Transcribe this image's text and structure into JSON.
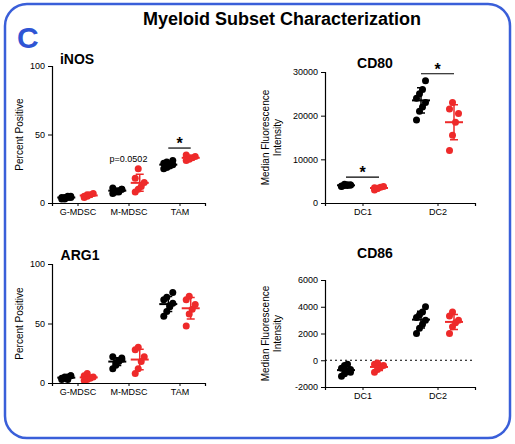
{
  "header": {
    "panel_label": "C",
    "title": "Myeloid Subset Characterization"
  },
  "chart_data": [
    {
      "type": "scatter",
      "title": "iNOS",
      "ylabel": [
        "Percent Positive"
      ],
      "categories": [
        "G-MDSC",
        "M-MDSC",
        "TAM"
      ],
      "ylim": [
        0,
        100
      ],
      "yticks": [
        0,
        50,
        100
      ],
      "series": [
        {
          "color": "#000000",
          "values": [
            [
              3,
              4,
              4,
              5,
              4,
              3,
              5,
              4
            ],
            [
              7,
              8,
              9,
              10,
              11,
              9,
              8,
              10
            ],
            [
              25,
              26,
              27,
              28,
              29,
              30,
              28,
              31
            ]
          ],
          "mean": [
            4,
            9,
            28
          ],
          "sd": [
            0.8,
            1.3,
            2.0
          ]
        },
        {
          "color": "#ee2a2a",
          "values": [
            [
              4,
              5,
              6,
              7,
              5,
              6
            ],
            [
              8,
              10,
              12,
              15,
              18,
              25
            ],
            [
              31,
              32,
              33,
              34,
              35,
              33
            ]
          ],
          "mean": [
            5.5,
            14.7,
            33
          ],
          "sd": [
            1.05,
            6.2,
            1.4
          ]
        }
      ],
      "annotations": [
        {
          "text": "p=0.0502",
          "category": "M-MDSC"
        },
        {
          "text": "*",
          "category": "TAM",
          "marker": "bracket"
        }
      ]
    },
    {
      "type": "scatter",
      "title": "CD80",
      "ylabel": [
        "Median Fluorescence",
        "Intensity"
      ],
      "categories": [
        "DC1",
        "DC2"
      ],
      "ylim": [
        0,
        30000
      ],
      "yticks": [
        0,
        10000,
        20000,
        30000
      ],
      "series": [
        {
          "color": "#000000",
          "values": [
            [
              3800,
              4000,
              4200,
              4100,
              3900,
              4300,
              4000,
              4100
            ],
            [
              19000,
              21000,
              22000,
              23000,
              24000,
              25000,
              26000,
              28000
            ]
          ],
          "mean": [
            4050,
            23500
          ],
          "sd": [
            160,
            2900
          ]
        },
        {
          "color": "#ee2a2a",
          "values": [
            [
              3000,
              3300,
              3600,
              3800,
              3500,
              3400
            ],
            [
              12000,
              15500,
              18500,
              20500,
              21500,
              23000
            ]
          ],
          "mean": [
            3433,
            18500
          ],
          "sd": [
            275,
            4000
          ]
        }
      ],
      "annotations": [
        {
          "text": "*",
          "category": "DC1",
          "marker": "bracket"
        },
        {
          "text": "*",
          "category": "DC2",
          "marker": "bracket"
        }
      ]
    },
    {
      "type": "scatter",
      "title": "ARG1",
      "ylabel": [
        "Percent Positive"
      ],
      "categories": [
        "G-MDSC",
        "M-MDSC",
        "TAM"
      ],
      "ylim": [
        0,
        100
      ],
      "yticks": [
        0,
        50,
        100
      ],
      "series": [
        {
          "color": "#000000",
          "values": [
            [
              3,
              4,
              5,
              6,
              4,
              5,
              3,
              6
            ],
            [
              12,
              15,
              18,
              20,
              22,
              17,
              19,
              21
            ],
            [
              56,
              60,
              64,
              67,
              70,
              72,
              65,
              76
            ]
          ],
          "mean": [
            4.5,
            18,
            66.3
          ],
          "sd": [
            1.2,
            3.3,
            6.3
          ]
        },
        {
          "color": "#ee2a2a",
          "values": [
            [
              2,
              3,
              4,
              5,
              6,
              8
            ],
            [
              8,
              12,
              18,
              22,
              28,
              30
            ],
            [
              48,
              58,
              62,
              66,
              70,
              73
            ]
          ],
          "mean": [
            4.7,
            19.7,
            62.8
          ],
          "sd": [
            2.1,
            8.6,
            9.0
          ]
        }
      ]
    },
    {
      "type": "scatter",
      "title": "CD86",
      "ylabel": [
        "Median Fluorescence",
        "Intensity"
      ],
      "categories": [
        "DC1",
        "DC2"
      ],
      "ylim": [
        -2000,
        6000
      ],
      "yticks": [
        -2000,
        0,
        2000,
        4000,
        6000
      ],
      "reference_lines": [
        0
      ],
      "series": [
        {
          "color": "#000000",
          "values": [
            [
              -1200,
              -1000,
              -800,
              -700,
              -600,
              -400,
              -300,
              -900
            ],
            [
              2000,
              2400,
              2700,
              3000,
              3200,
              3400,
              3600,
              4000
            ]
          ],
          "mean": [
            -738,
            3038
          ],
          "sd": [
            300,
            630
          ]
        },
        {
          "color": "#ee2a2a",
          "values": [
            [
              -900,
              -700,
              -500,
              -400,
              -300,
              -200
            ],
            [
              2000,
              2500,
              2800,
              3000,
              3300,
              3600
            ]
          ],
          "mean": [
            -500,
            2867
          ],
          "sd": [
            260,
            560
          ]
        }
      ]
    }
  ]
}
